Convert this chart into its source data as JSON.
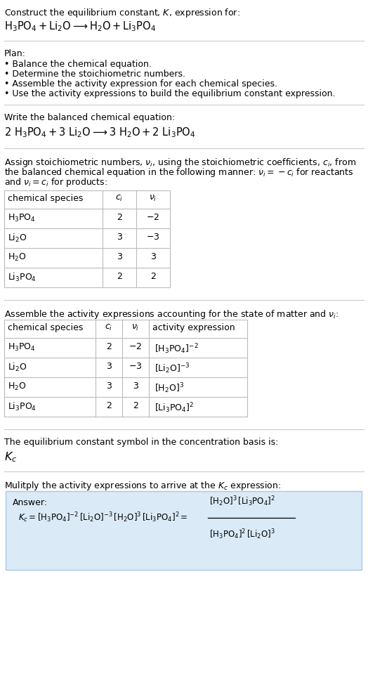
{
  "title_line1": "Construct the equilibrium constant, $K$, expression for:",
  "title_line2": "$\\mathrm{H_3PO_4 + Li_2O} \\longrightarrow \\mathrm{H_2O + Li_3PO_4}$",
  "plan_header": "Plan:",
  "plan_bullets": [
    "• Balance the chemical equation.",
    "• Determine the stoichiometric numbers.",
    "• Assemble the activity expression for each chemical species.",
    "• Use the activity expressions to build the equilibrium constant expression."
  ],
  "balanced_header": "Write the balanced chemical equation:",
  "balanced_eq": "$\\mathrm{2\\ H_3PO_4 + 3\\ Li_2O} \\longrightarrow \\mathrm{3\\ H_2O + 2\\ Li_3PO_4}$",
  "stoich_intro_lines": [
    "Assign stoichiometric numbers, $\\nu_i$, using the stoichiometric coefficients, $c_i$, from",
    "the balanced chemical equation in the following manner: $\\nu_i = -c_i$ for reactants",
    "and $\\nu_i = c_i$ for products:"
  ],
  "table1_headers": [
    "chemical species",
    "$c_i$",
    "$\\nu_i$"
  ],
  "table1_rows": [
    [
      "$\\mathrm{H_3PO_4}$",
      "2",
      "$-2$"
    ],
    [
      "$\\mathrm{Li_2O}$",
      "3",
      "$-3$"
    ],
    [
      "$\\mathrm{H_2O}$",
      "3",
      "$3$"
    ],
    [
      "$\\mathrm{Li_3PO_4}$",
      "2",
      "$2$"
    ]
  ],
  "activity_intro": "Assemble the activity expressions accounting for the state of matter and $\\nu_i$:",
  "table2_headers": [
    "chemical species",
    "$c_i$",
    "$\\nu_i$",
    "activity expression"
  ],
  "table2_rows": [
    [
      "$\\mathrm{H_3PO_4}$",
      "2",
      "$-2$",
      "$[\\mathrm{H_3PO_4}]^{-2}$"
    ],
    [
      "$\\mathrm{Li_2O}$",
      "3",
      "$-3$",
      "$[\\mathrm{Li_2O}]^{-3}$"
    ],
    [
      "$\\mathrm{H_2O}$",
      "3",
      "$3$",
      "$[\\mathrm{H_2O}]^{3}$"
    ],
    [
      "$\\mathrm{Li_3PO_4}$",
      "2",
      "$2$",
      "$[\\mathrm{Li_3PO_4}]^{2}$"
    ]
  ],
  "kc_intro": "The equilibrium constant symbol in the concentration basis is:",
  "kc_symbol": "$K_c$",
  "multiply_intro": "Mulitply the activity expressions to arrive at the $K_c$ expression:",
  "answer_label": "Answer:",
  "kc_eq_left": "$K_c = [\\mathrm{H_3PO_4}]^{-2}\\,[\\mathrm{Li_2O}]^{-3}\\,[\\mathrm{H_2O}]^{3}\\,[\\mathrm{Li_3PO_4}]^{2} = $",
  "kc_eq_right_num": "$[\\mathrm{H_2O}]^{3}\\,[\\mathrm{Li_3PO_4}]^{2}$",
  "kc_eq_right_den": "$[\\mathrm{H_3PO_4}]^{2}\\,[\\mathrm{Li_2O}]^{3}$",
  "bg_color": "#ffffff",
  "answer_box_color": "#daeaf7",
  "table_line_color": "#bbbbbb",
  "text_color": "#000000",
  "font_size": 9.5,
  "small_font": 9.0
}
